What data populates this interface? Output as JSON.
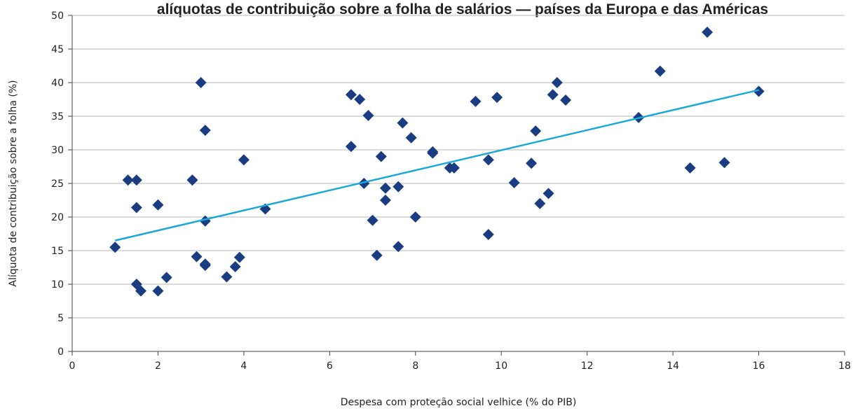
{
  "chart_data": {
    "type": "scatter",
    "title": "alíquotas de contribuição sobre a folha de salários — países da Europa e das Américas",
    "x_label": "Despesa com proteção social velhice (% do PIB)",
    "y_label": "Alíquota de contribuição sobre a folha (%)",
    "xlim": [
      0,
      18
    ],
    "xticks": [
      0,
      2,
      4,
      6,
      8,
      10,
      12,
      14,
      16,
      18
    ],
    "ylim": [
      0,
      50
    ],
    "yticks": [
      0,
      5,
      10,
      15,
      20,
      25,
      30,
      35,
      40,
      45,
      50
    ],
    "grid": true,
    "color": "#1a3d82",
    "x": [
      1.0,
      1.3,
      1.5,
      1.5,
      1.5,
      1.6,
      2.0,
      2.0,
      2.2,
      2.8,
      2.9,
      3.0,
      3.1,
      3.1,
      3.1,
      3.1,
      3.6,
      3.8,
      3.9,
      4.0,
      4.5,
      6.5,
      6.5,
      6.7,
      6.8,
      6.9,
      7.0,
      7.1,
      7.2,
      7.3,
      7.3,
      7.6,
      7.6,
      7.7,
      7.9,
      8.0,
      8.4,
      8.4,
      8.8,
      8.9,
      9.4,
      9.7,
      9.7,
      9.9,
      10.3,
      10.7,
      10.8,
      10.9,
      11.1,
      11.2,
      11.3,
      11.5,
      13.2,
      13.7,
      14.4,
      14.8,
      15.2,
      16.0
    ],
    "values": [
      15.5,
      25.5,
      25.5,
      21.4,
      10,
      9,
      21.8,
      9,
      11,
      25.5,
      14.1,
      40,
      32.9,
      19.4,
      12.8,
      13.0,
      11.1,
      12.6,
      14,
      28.5,
      21.2,
      38.2,
      30.5,
      37.5,
      25,
      35.1,
      19.5,
      14.3,
      29,
      24.3,
      22.5,
      24.5,
      15.6,
      34,
      31.8,
      20,
      29.7,
      29.5,
      27.3,
      27.3,
      37.2,
      28.5,
      17.4,
      37.8,
      25.1,
      28,
      32.8,
      22,
      23.5,
      38.2,
      40,
      37.4,
      34.8,
      41.7,
      27.3,
      47.5,
      28.1,
      38.7
    ],
    "trend": {
      "color": "#1ba8d8",
      "x": [
        1.0,
        16.0
      ],
      "values": [
        16.5,
        38.9
      ]
    }
  }
}
